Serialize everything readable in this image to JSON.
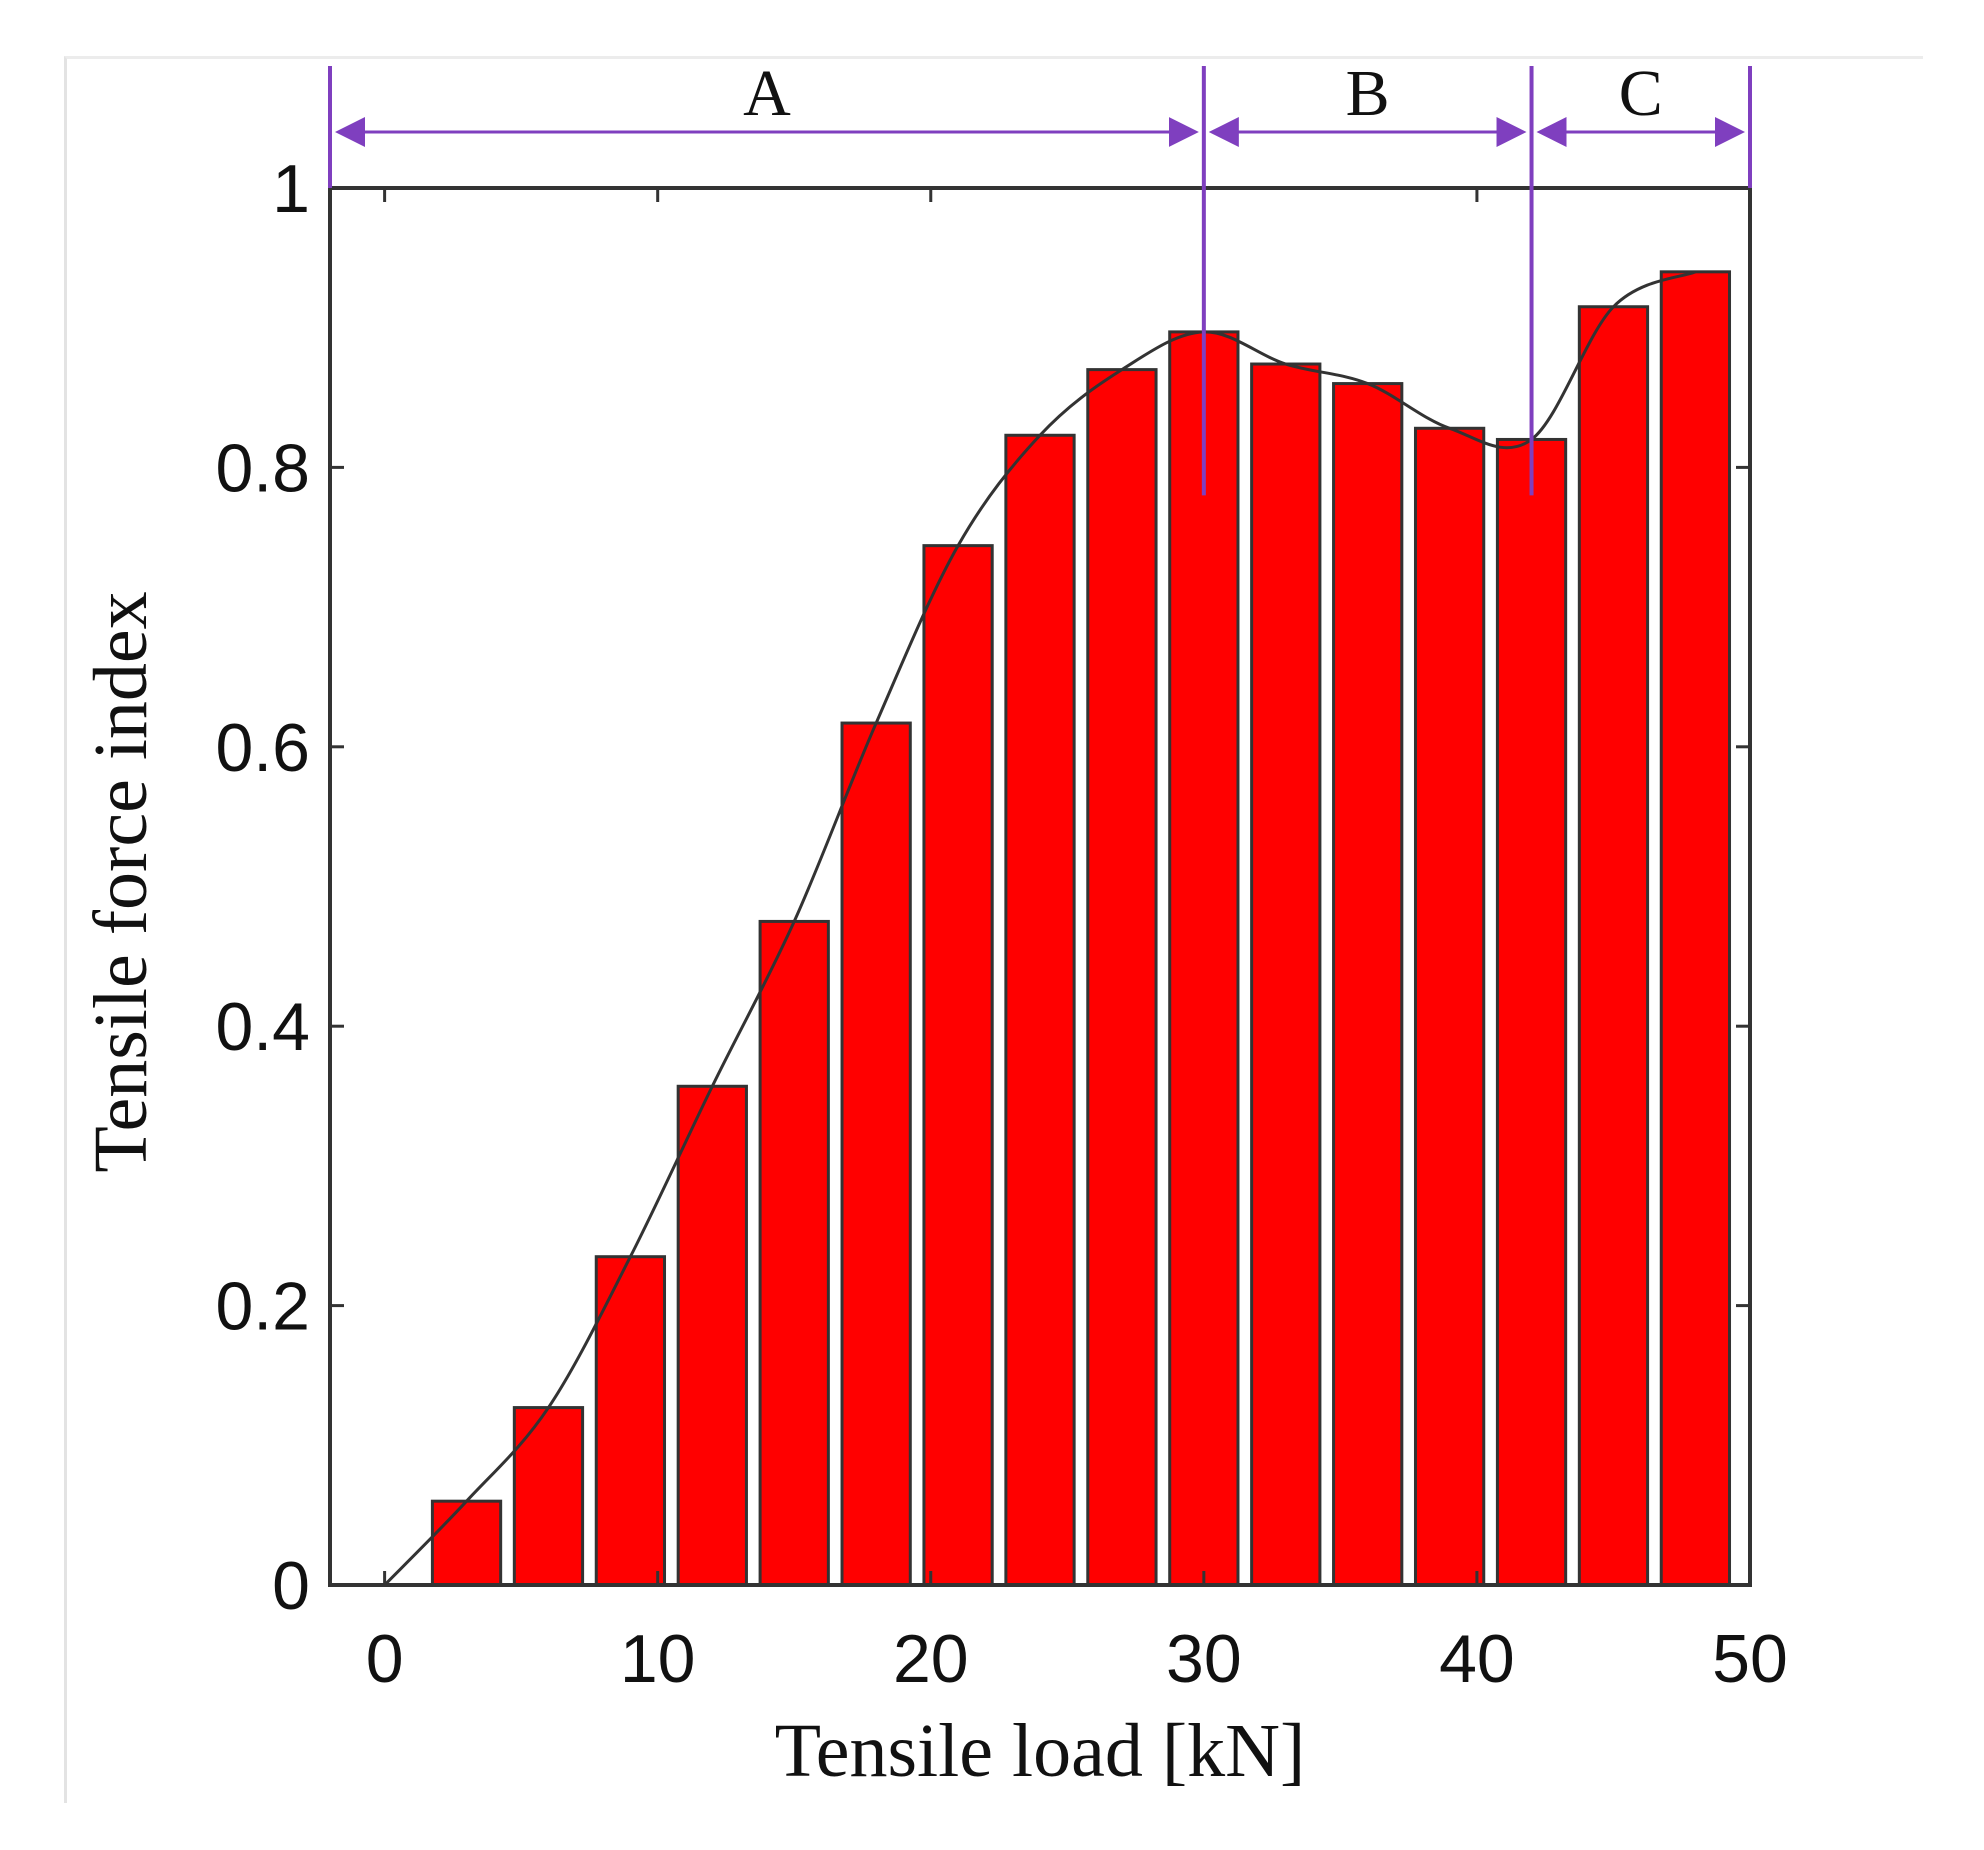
{
  "chart_data": {
    "type": "bar",
    "title": "",
    "xlabel": "Tensile load [kN]",
    "ylabel": "Tensile force index",
    "xlim": [
      -2,
      50
    ],
    "ylim": [
      0,
      1
    ],
    "xticks": [
      0,
      10,
      20,
      30,
      40,
      50
    ],
    "yticks": [
      0,
      0.2,
      0.4,
      0.6,
      0.8,
      1
    ],
    "ytick_labels": [
      "0",
      "0.2",
      "0.4",
      "0.6",
      "0.8",
      "1"
    ],
    "grid": false,
    "bar_color": "#ff0000",
    "bar_edge_color": "#333333",
    "curve_color": "#333333",
    "annotation_color": "#7f3fbf",
    "x": [
      3,
      6,
      9,
      12,
      15,
      18,
      21,
      24,
      27,
      30,
      33,
      36,
      39,
      42,
      45,
      48
    ],
    "values": [
      0.06,
      0.127,
      0.235,
      0.357,
      0.475,
      0.617,
      0.744,
      0.823,
      0.87,
      0.897,
      0.874,
      0.86,
      0.828,
      0.82,
      0.915,
      0.94
    ],
    "curve": {
      "x": [
        0,
        3,
        6,
        9,
        12,
        15,
        18,
        21,
        24,
        27,
        30,
        33,
        36,
        39,
        42,
        45,
        48
      ],
      "y": [
        0,
        0.06,
        0.127,
        0.235,
        0.357,
        0.475,
        0.617,
        0.744,
        0.823,
        0.87,
        0.897,
        0.874,
        0.86,
        0.828,
        0.82,
        0.915,
        0.94
      ]
    },
    "regions": [
      {
        "label": "A",
        "from": -2,
        "to": 30
      },
      {
        "label": "B",
        "from": 30,
        "to": 42
      },
      {
        "label": "C",
        "from": 42,
        "to": 50
      }
    ],
    "region_dividers": [
      {
        "x": 30,
        "y_bottom": 0.78
      },
      {
        "x": 42,
        "y_bottom": 0.78
      }
    ]
  }
}
